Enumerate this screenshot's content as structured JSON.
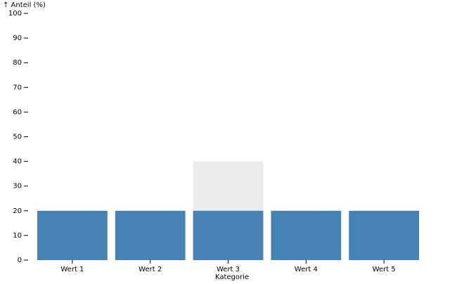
{
  "chart_data": {
    "type": "bar",
    "ylabel": "↑ Anteil (%)",
    "xlabel": "Kategorie",
    "categories": [
      "Wert 1",
      "Wert 2",
      "Wert 3",
      "Wert 4",
      "Wert 5"
    ],
    "series": [
      {
        "values": [
          20,
          20,
          20,
          20,
          20
        ],
        "color": "#4682b4"
      }
    ],
    "background_bars": {
      "values": [
        0,
        0,
        40,
        0,
        0
      ],
      "color": "#ebebeb"
    },
    "ylim": [
      0,
      100
    ],
    "yticks": [
      0,
      10,
      20,
      30,
      40,
      50,
      60,
      70,
      80,
      90,
      100
    ],
    "grid": false,
    "legend": "none"
  }
}
